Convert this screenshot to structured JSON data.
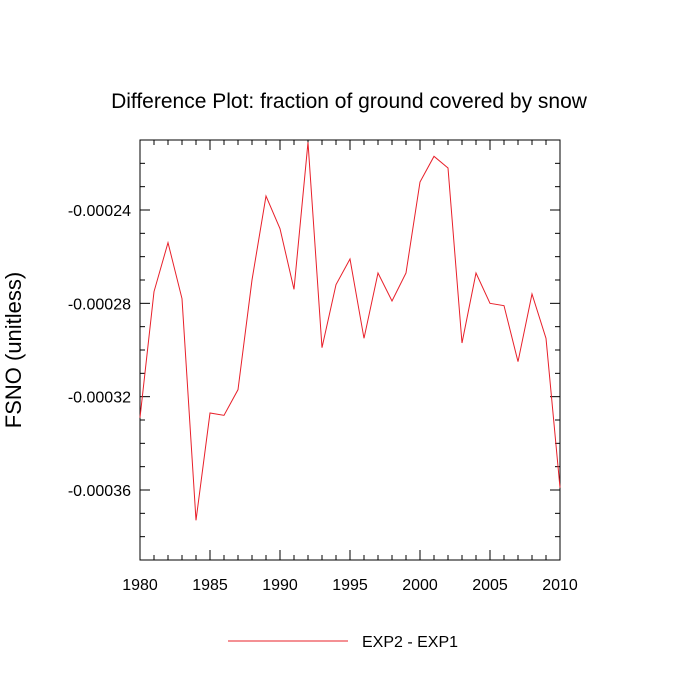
{
  "chart_data": {
    "type": "line",
    "title": "Difference Plot: fraction of ground covered by snow",
    "xlabel": "",
    "ylabel": "FSNO  (unitless)",
    "xlim": [
      1980,
      2010
    ],
    "ylim": [
      -0.00039,
      -0.00021
    ],
    "x_ticks": [
      1980,
      1985,
      1990,
      1995,
      2000,
      2005,
      2010
    ],
    "x_tick_labels": [
      "1980",
      "1985",
      "1990",
      "1995",
      "2000",
      "2005",
      "2010"
    ],
    "y_ticks": [
      -0.00024,
      -0.00028,
      -0.00032,
      -0.00036
    ],
    "y_tick_labels": [
      "-0.00024",
      "-0.00028",
      "-0.00032",
      "-0.00036"
    ],
    "grid": false,
    "legend_position": "bottom-center",
    "series": [
      {
        "name": "EXP2 - EXP1",
        "color": "#e8202a",
        "x": [
          1980,
          1981,
          1982,
          1983,
          1984,
          1985,
          1986,
          1987,
          1988,
          1989,
          1990,
          1991,
          1992,
          1993,
          1994,
          1995,
          1996,
          1997,
          1998,
          1999,
          2000,
          2001,
          2002,
          2003,
          2004,
          2005,
          2006,
          2007,
          2008,
          2009,
          2010
        ],
        "values": [
          -0.000329,
          -0.000275,
          -0.000254,
          -0.000278,
          -0.000373,
          -0.000327,
          -0.000328,
          -0.000317,
          -0.00027,
          -0.000234,
          -0.000248,
          -0.000274,
          -0.000211,
          -0.000299,
          -0.000272,
          -0.000261,
          -0.000295,
          -0.000267,
          -0.000279,
          -0.000267,
          -0.000228,
          -0.000217,
          -0.000222,
          -0.000297,
          -0.000267,
          -0.00028,
          -0.000281,
          -0.000305,
          -0.000276,
          -0.000295,
          -0.000359
        ]
      }
    ]
  }
}
